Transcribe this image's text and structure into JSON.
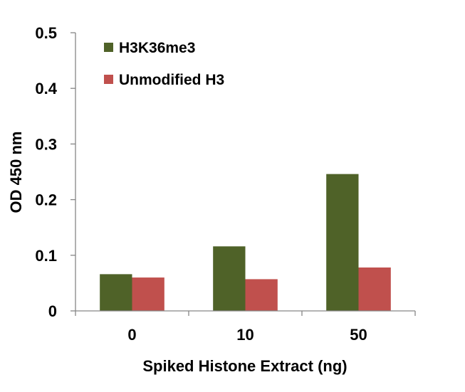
{
  "chart_data": {
    "type": "bar",
    "categories": [
      "0",
      "10",
      "50"
    ],
    "series": [
      {
        "name": "H3K36me3",
        "values": [
          0.066,
          0.116,
          0.246
        ],
        "color": "#4f6228"
      },
      {
        "name": "Unmodified H3",
        "values": [
          0.06,
          0.057,
          0.078
        ],
        "color": "#c0504d"
      }
    ],
    "title": "",
    "xlabel": "Spiked Histone Extract (ng)",
    "ylabel": "OD 450 nm",
    "ylim": [
      0,
      0.5
    ],
    "yticks": [
      "0",
      "0.1",
      "0.2",
      "0.3",
      "0.4",
      "0.5"
    ],
    "grid": false,
    "legend_position": "top-left"
  }
}
